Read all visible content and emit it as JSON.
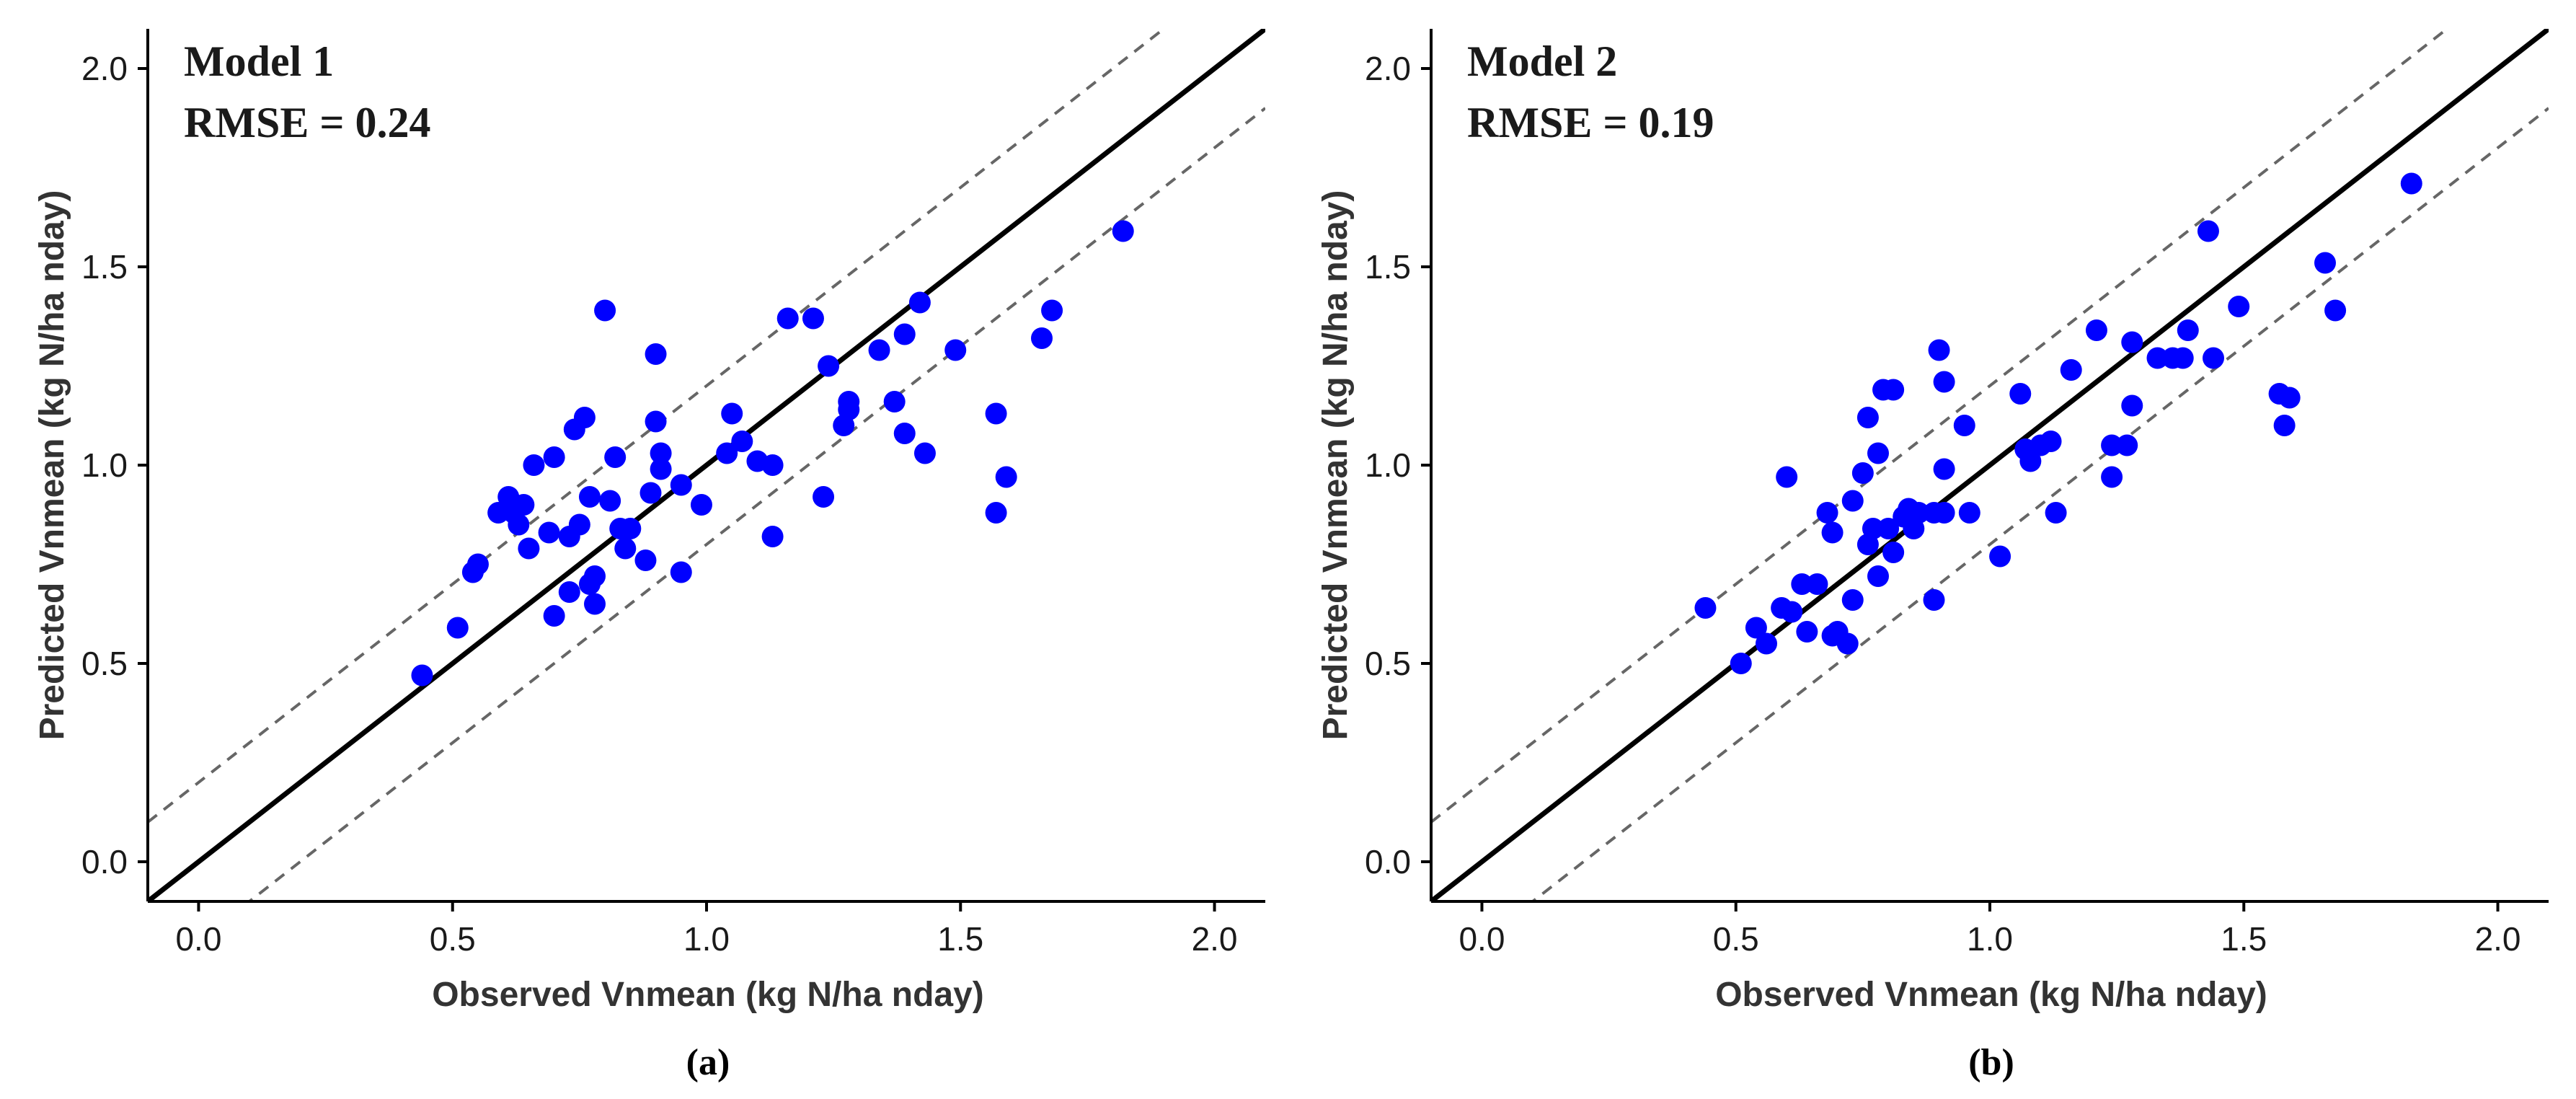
{
  "chart_data": [
    {
      "type": "scatter",
      "title": "Model 1",
      "annotation": "RMSE = 0.24",
      "caption": "(a)",
      "xlabel": "Observed Vnmean (kg N/ha nday)",
      "ylabel": "Predicted Vnmean (kg N/ha nday)",
      "xlim": [
        -0.1,
        2.1
      ],
      "ylim": [
        -0.1,
        2.1
      ],
      "xticks": [
        0.0,
        0.5,
        1.0,
        1.5,
        2.0
      ],
      "yticks": [
        0.0,
        0.5,
        1.0,
        1.5,
        2.0
      ],
      "xtick_labels": [
        "0.0",
        "0.5",
        "1.0",
        "1.5",
        "2.0"
      ],
      "ytick_labels": [
        "0.0",
        "0.5",
        "1.0",
        "1.5",
        "2.0"
      ],
      "reference_lines": [
        {
          "name": "1:1 line",
          "intercept": 0.0,
          "slope": 1.0,
          "style": "solid"
        },
        {
          "name": "upper bound",
          "intercept": 0.2,
          "slope": 1.0,
          "style": "dashed"
        },
        {
          "name": "lower bound",
          "intercept": -0.2,
          "slope": 1.0,
          "style": "dashed"
        }
      ],
      "series": [
        {
          "name": "Model 1",
          "color": "#0000ff",
          "x": [
            0.44,
            0.51,
            0.54,
            0.55,
            0.59,
            0.61,
            0.62,
            0.63,
            0.64,
            0.65,
            0.66,
            0.69,
            0.7,
            0.7,
            0.73,
            0.73,
            0.74,
            0.75,
            0.76,
            0.77,
            0.77,
            0.78,
            0.78,
            0.8,
            0.81,
            0.82,
            0.83,
            0.84,
            0.85,
            0.88,
            0.89,
            0.9,
            0.9,
            0.91,
            0.91,
            0.95,
            0.95,
            0.99,
            1.04,
            1.05,
            1.07,
            1.1,
            1.13,
            1.13,
            1.16,
            1.21,
            1.23,
            1.24,
            1.27,
            1.28,
            1.28,
            1.34,
            1.37,
            1.39,
            1.39,
            1.42,
            1.43,
            1.49,
            1.57,
            1.57,
            1.59,
            1.66,
            1.68,
            1.82
          ],
          "y": [
            0.47,
            0.59,
            0.73,
            0.75,
            0.88,
            0.92,
            0.88,
            0.85,
            0.9,
            0.79,
            1.0,
            0.83,
            1.02,
            0.62,
            0.82,
            0.68,
            1.09,
            0.85,
            1.12,
            0.92,
            0.7,
            0.65,
            0.72,
            1.39,
            0.91,
            1.02,
            0.84,
            0.79,
            0.84,
            0.76,
            0.93,
            1.28,
            1.11,
            0.99,
            1.03,
            0.95,
            0.73,
            0.9,
            1.03,
            1.13,
            1.06,
            1.01,
            1.0,
            0.82,
            1.37,
            1.37,
            0.92,
            1.25,
            1.1,
            1.14,
            1.16,
            1.29,
            1.16,
            1.33,
            1.08,
            1.41,
            1.03,
            1.29,
            1.13,
            0.88,
            0.97,
            1.32,
            1.39,
            1.59
          ]
        }
      ]
    },
    {
      "type": "scatter",
      "title": "Model 2",
      "annotation": "RMSE = 0.19",
      "caption": "(b)",
      "xlabel": "Observed Vnmean (kg N/ha nday)",
      "ylabel": "Predicted Vnmean (kg N/ha nday)",
      "xlim": [
        -0.1,
        2.1
      ],
      "ylim": [
        -0.1,
        2.1
      ],
      "xticks": [
        0.0,
        0.5,
        1.0,
        1.5,
        2.0
      ],
      "yticks": [
        0.0,
        0.5,
        1.0,
        1.5,
        2.0
      ],
      "xtick_labels": [
        "0.0",
        "0.5",
        "1.0",
        "1.5",
        "2.0"
      ],
      "ytick_labels": [
        "0.0",
        "0.5",
        "1.0",
        "1.5",
        "2.0"
      ],
      "reference_lines": [
        {
          "name": "1:1 line",
          "intercept": 0.0,
          "slope": 1.0,
          "style": "solid"
        },
        {
          "name": "upper bound",
          "intercept": 0.2,
          "slope": 1.0,
          "style": "dashed"
        },
        {
          "name": "lower bound",
          "intercept": -0.2,
          "slope": 1.0,
          "style": "dashed"
        }
      ],
      "series": [
        {
          "name": "Model 2",
          "color": "#0000ff",
          "x": [
            0.44,
            0.51,
            0.54,
            0.56,
            0.59,
            0.6,
            0.61,
            0.63,
            0.64,
            0.66,
            0.68,
            0.69,
            0.69,
            0.7,
            0.72,
            0.73,
            0.73,
            0.75,
            0.76,
            0.76,
            0.77,
            0.78,
            0.78,
            0.79,
            0.8,
            0.81,
            0.81,
            0.83,
            0.84,
            0.85,
            0.86,
            0.89,
            0.89,
            0.9,
            0.91,
            0.91,
            0.91,
            0.95,
            0.96,
            1.02,
            1.06,
            1.07,
            1.08,
            1.1,
            1.12,
            1.13,
            1.16,
            1.21,
            1.24,
            1.24,
            1.27,
            1.28,
            1.28,
            1.33,
            1.36,
            1.38,
            1.39,
            1.43,
            1.44,
            1.49,
            1.57,
            1.58,
            1.59,
            1.66,
            1.68,
            1.83
          ],
          "y": [
            0.64,
            0.5,
            0.59,
            0.55,
            0.64,
            0.97,
            0.63,
            0.7,
            0.58,
            0.7,
            0.88,
            0.57,
            0.83,
            0.58,
            0.55,
            0.66,
            0.91,
            0.98,
            0.8,
            1.12,
            0.84,
            0.72,
            1.03,
            1.19,
            0.84,
            0.78,
            1.19,
            0.87,
            0.89,
            0.84,
            0.88,
            0.66,
            0.88,
            1.29,
            0.99,
            0.88,
            1.21,
            1.1,
            0.88,
            0.77,
            1.18,
            1.04,
            1.01,
            1.05,
            1.06,
            0.88,
            1.24,
            1.34,
            0.97,
            1.05,
            1.05,
            1.15,
            1.31,
            1.27,
            1.27,
            1.27,
            1.34,
            1.59,
            1.27,
            1.4,
            1.18,
            1.1,
            1.17,
            1.51,
            1.39,
            1.71
          ]
        }
      ]
    }
  ]
}
